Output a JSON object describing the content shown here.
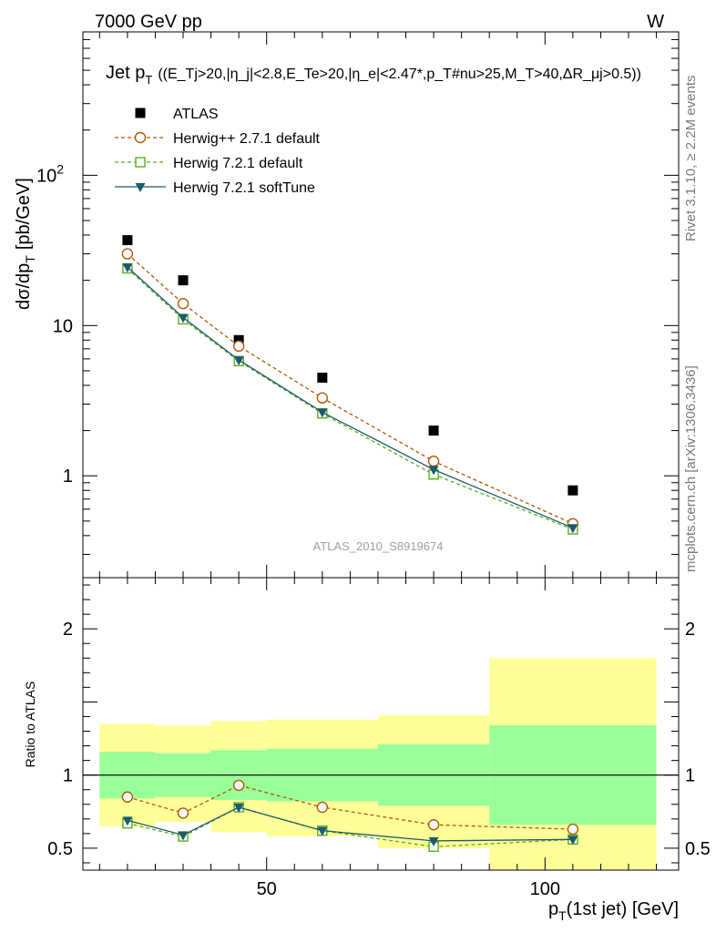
{
  "header": {
    "energy": "7000 GeV pp",
    "process": "W"
  },
  "side_text": {
    "rivet": "Rivet 3.1.10, ≥ 2.2M events",
    "mcplots": "mcplots.cern.ch [arXiv:1306.3436]"
  },
  "watermark": "ATLAS_2010_S8919674",
  "chart_data": [
    {
      "type": "scatter",
      "title": "Jet p_T ((E_Tj>20,|η_j|<2.8,E_Te>20,|η_e|<2.47^*,p_T^#nu>25,M_T>40,ΔR_μj>0.5))",
      "title_main": "Jet p",
      "title_main_sub": "T",
      "title_cuts": "((E_Tj>20,|η_j|<2.8,E_Te>20,|η_e|<2.47*,p_T#nu>25,M_T>40,ΔR_μj>0.5))",
      "ylabel": "dσ/dp_T [pb/GeV]",
      "ylabel_main": "dσ/dp",
      "ylabel_sub": "T",
      "ylabel_unit": "[pb/GeV]",
      "yscale": "log",
      "xlim": [
        17,
        124
      ],
      "ylim": [
        0.21,
        900
      ],
      "yticks": [
        {
          "value": 1,
          "label": "1"
        },
        {
          "value": 10,
          "label": "10"
        },
        {
          "value": 100,
          "label": "10",
          "exp": "2"
        }
      ],
      "legend_placement": "top-left",
      "series": [
        {
          "name": "ATLAS",
          "style": "data",
          "color": "#000000",
          "x": [
            25,
            35,
            45,
            60,
            80,
            105
          ],
          "y": [
            37,
            20,
            8.0,
            4.5,
            2.0,
            0.8
          ]
        },
        {
          "name": "Herwig++ 2.7.1 default",
          "style": "circle",
          "color": "#b35806",
          "x": [
            25,
            35,
            45,
            60,
            80,
            105
          ],
          "y": [
            30,
            14,
            7.3,
            3.3,
            1.25,
            0.48
          ]
        },
        {
          "name": "Herwig 7.2.1 default",
          "style": "square",
          "color": "#5aae1e",
          "x": [
            25,
            35,
            45,
            60,
            80,
            105
          ],
          "y": [
            24,
            11,
            5.8,
            2.6,
            1.02,
            0.44
          ]
        },
        {
          "name": "Herwig 7.2.1 softTune",
          "style": "triangle",
          "color": "#1d5a6b",
          "x": [
            25,
            35,
            45,
            60,
            80,
            105
          ],
          "y": [
            24.5,
            11.3,
            5.9,
            2.65,
            1.1,
            0.45
          ]
        }
      ]
    },
    {
      "type": "line",
      "title": "",
      "xlabel": "p_T(1st jet) [GeV]",
      "xlabel_main": "p",
      "xlabel_sub": "T",
      "xlabel_rest": "(1st jet) [GeV]",
      "ylabel": "Ratio to ATLAS",
      "yscale": "linear",
      "xlim": [
        17,
        124
      ],
      "ylim": [
        0.35,
        2.35
      ],
      "xticks": [
        {
          "value": 50,
          "label": "50"
        },
        {
          "value": 100,
          "label": "100"
        }
      ],
      "yticks": [
        {
          "value": 0.5,
          "label": "0.5"
        },
        {
          "value": 1,
          "label": "1"
        },
        {
          "value": 2,
          "label": "2"
        }
      ],
      "bands": [
        {
          "x0": 20,
          "x1": 30,
          "yellow": [
            0.65,
            1.35
          ],
          "green": [
            0.84,
            1.16
          ]
        },
        {
          "x0": 30,
          "x1": 40,
          "yellow": [
            0.68,
            1.34
          ],
          "green": [
            0.85,
            1.15
          ]
        },
        {
          "x0": 40,
          "x1": 50,
          "yellow": [
            0.61,
            1.37
          ],
          "green": [
            0.83,
            1.17
          ]
        },
        {
          "x0": 50,
          "x1": 70,
          "yellow": [
            0.58,
            1.38
          ],
          "green": [
            0.82,
            1.18
          ]
        },
        {
          "x0": 70,
          "x1": 90,
          "yellow": [
            0.5,
            1.41
          ],
          "green": [
            0.79,
            1.21
          ]
        },
        {
          "x0": 90,
          "x1": 120,
          "yellow": [
            0.2,
            1.8
          ],
          "green": [
            0.66,
            1.34
          ]
        }
      ],
      "reference_line": 1,
      "series": [
        {
          "name": "Herwig++ 2.7.1 default",
          "style": "circle",
          "color": "#b35806",
          "x": [
            25,
            35,
            45,
            60,
            80,
            105
          ],
          "y": [
            0.85,
            0.74,
            0.93,
            0.78,
            0.66,
            0.63
          ]
        },
        {
          "name": "Herwig 7.2.1 default",
          "style": "square",
          "color": "#5aae1e",
          "x": [
            25,
            35,
            45,
            60,
            80,
            105
          ],
          "y": [
            0.67,
            0.58,
            0.78,
            0.62,
            0.51,
            0.56
          ]
        },
        {
          "name": "Herwig 7.2.1 softTune",
          "style": "triangle",
          "color": "#1d5a6b",
          "x": [
            25,
            35,
            45,
            60,
            80,
            105
          ],
          "y": [
            0.69,
            0.59,
            0.78,
            0.62,
            0.55,
            0.56
          ]
        }
      ]
    }
  ]
}
